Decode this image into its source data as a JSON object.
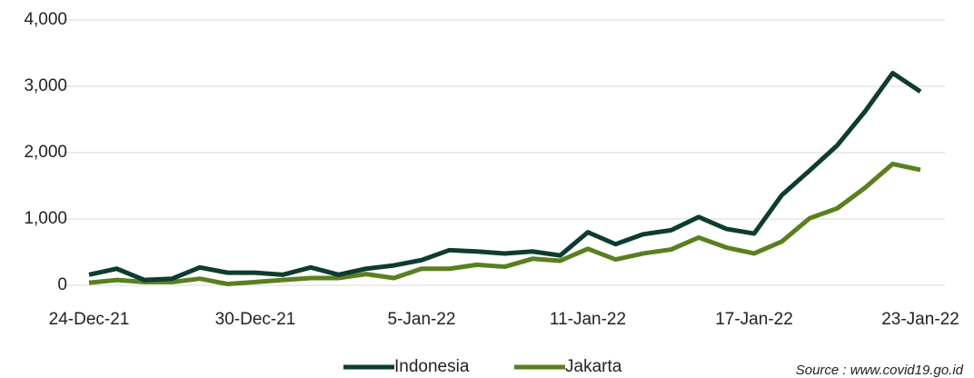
{
  "chart_data": {
    "type": "line",
    "categories": [
      "24-Dec-21",
      null,
      null,
      null,
      null,
      null,
      "30-Dec-21",
      null,
      null,
      null,
      null,
      null,
      "5-Jan-22",
      null,
      null,
      null,
      null,
      null,
      "11-Jan-22",
      null,
      null,
      null,
      null,
      null,
      "17-Jan-22",
      null,
      null,
      null,
      null,
      null,
      "23-Jan-22"
    ],
    "series": [
      {
        "name": "Indonesia",
        "color": "#0e3d2f",
        "values": [
          160,
          250,
          80,
          100,
          270,
          190,
          190,
          160,
          270,
          160,
          250,
          300,
          380,
          530,
          510,
          480,
          510,
          450,
          800,
          620,
          770,
          830,
          1030,
          850,
          780,
          1360,
          1730,
          2110,
          2620,
          3200,
          2920
        ]
      },
      {
        "name": "Jakarta",
        "color": "#5b7f1f",
        "values": [
          40,
          80,
          50,
          50,
          100,
          20,
          50,
          80,
          110,
          110,
          170,
          110,
          250,
          250,
          310,
          280,
          400,
          370,
          550,
          390,
          480,
          540,
          720,
          570,
          480,
          660,
          1010,
          1160,
          1470,
          1830,
          1740
        ]
      }
    ],
    "ylim": [
      0,
      4000
    ],
    "yticks": [
      0,
      {
        "value": 1000,
        "label": "1,000"
      },
      {
        "value": 2000,
        "label": "2,000"
      },
      {
        "value": 3000,
        "label": "3,000"
      },
      {
        "value": 4000,
        "label": "4,000"
      }
    ],
    "grid": true,
    "legend": "bottom",
    "annotation": "Source : www.covid19.go.id"
  }
}
